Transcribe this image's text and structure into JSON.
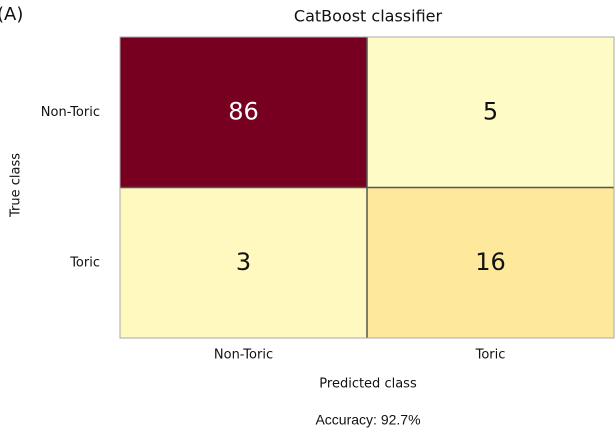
{
  "chart_data": {
    "type": "heatmap",
    "panel_label": "(A)",
    "title": "CatBoost classifier",
    "x_label": "Predicted class",
    "y_label": "True class",
    "x_categories": [
      "Non-Toric",
      "Toric"
    ],
    "y_categories": [
      "Non-Toric",
      "Toric"
    ],
    "values": [
      [
        86,
        5
      ],
      [
        3,
        16
      ]
    ],
    "cell_colors": [
      [
        "#770021",
        "#fffbc6"
      ],
      [
        "#fff8bf",
        "#fee89b"
      ]
    ],
    "footer": "Accuracy: 92.7%"
  }
}
